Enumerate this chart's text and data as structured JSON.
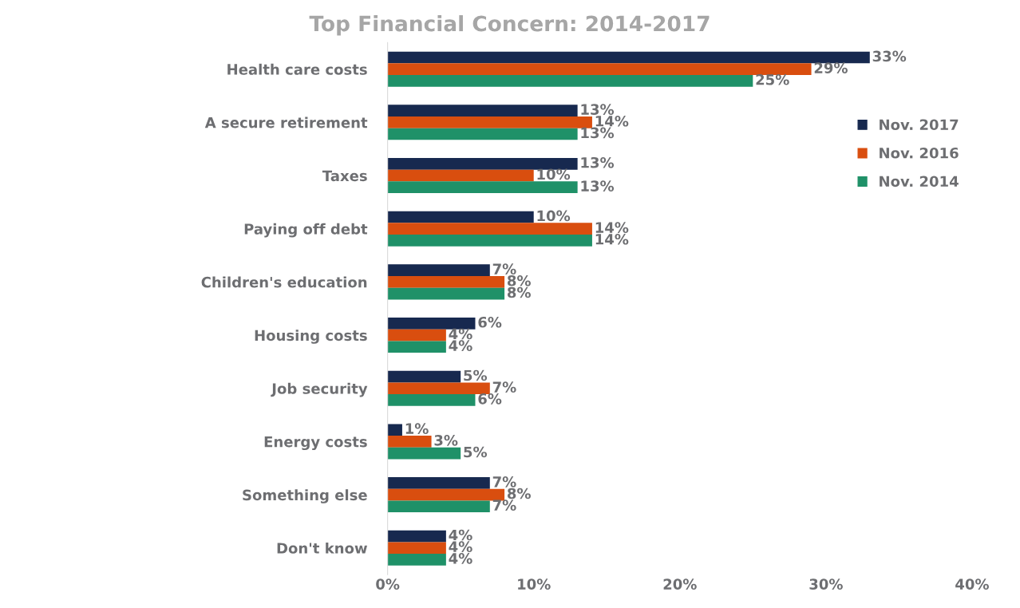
{
  "chart_data": {
    "type": "bar",
    "orientation": "horizontal",
    "title": "Top Financial Concern: 2014-2017",
    "categories": [
      "Health care costs",
      "A secure retirement",
      "Taxes",
      "Paying off debt",
      "Children's education",
      "Housing costs",
      "Job security",
      "Energy costs",
      "Something else",
      "Don't know"
    ],
    "series": [
      {
        "name": "Nov. 2017",
        "color": "#17294f",
        "values": [
          33,
          13,
          13,
          10,
          7,
          6,
          5,
          1,
          7,
          4
        ],
        "value_labels": [
          "33%",
          "13%",
          "13%",
          "10%",
          "7%",
          "6%",
          "5%",
          "1%",
          "7%",
          "4%"
        ]
      },
      {
        "name": "Nov. 2016",
        "color": "#d94e0f",
        "values": [
          29,
          14,
          10,
          14,
          8,
          4,
          7,
          3,
          8,
          4
        ],
        "value_labels": [
          "29%",
          "14%",
          "10%",
          "14%",
          "8%",
          "4%",
          "7%",
          "3%",
          "8%",
          "4%"
        ]
      },
      {
        "name": "Nov. 2014",
        "color": "#1f9168",
        "values": [
          25,
          13,
          13,
          14,
          8,
          4,
          6,
          5,
          7,
          4
        ],
        "value_labels": [
          "25%",
          "13%",
          "13%",
          "14%",
          "8%",
          "4%",
          "6%",
          "5%",
          "7%",
          "4%"
        ]
      }
    ],
    "xlim": [
      0,
      40
    ],
    "xticks": [
      {
        "value": 0,
        "label": "0%"
      },
      {
        "value": 10,
        "label": "10%"
      },
      {
        "value": 20,
        "label": "20%"
      },
      {
        "value": 30,
        "label": "30%"
      },
      {
        "value": 40,
        "label": "40%"
      }
    ],
    "grid": false,
    "legend": "right"
  }
}
